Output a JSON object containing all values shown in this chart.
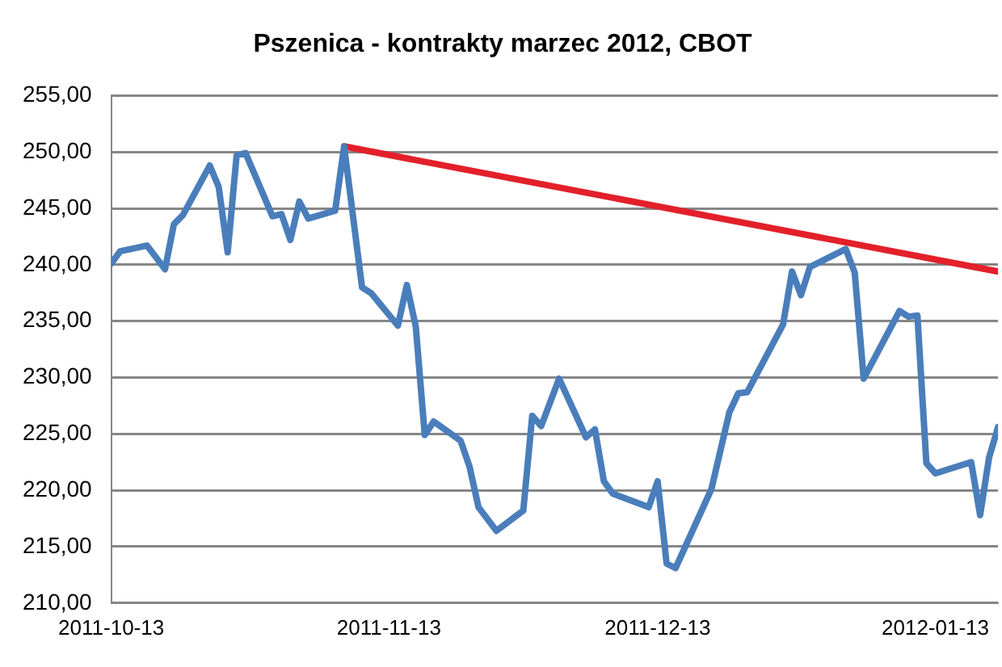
{
  "chart_data": {
    "type": "line",
    "title": "Pszenica - kontrakty marzec 2012, CBOT",
    "xlim": [
      "2011-10-13",
      "2012-01-20"
    ],
    "xticks": [
      "2011-10-13",
      "2011-11-13",
      "2011-12-13",
      "2012-01-13"
    ],
    "ylim": [
      210,
      255
    ],
    "yticks": [
      {
        "value": 210,
        "label": "210,00"
      },
      {
        "value": 215,
        "label": "215,00"
      },
      {
        "value": 220,
        "label": "220,00"
      },
      {
        "value": 225,
        "label": "225,00"
      },
      {
        "value": 230,
        "label": "230,00"
      },
      {
        "value": 235,
        "label": "235,00"
      },
      {
        "value": 240,
        "label": "240,00"
      },
      {
        "value": 245,
        "label": "245,00"
      },
      {
        "value": 250,
        "label": "250,00"
      },
      {
        "value": 255,
        "label": "255,00"
      }
    ],
    "grid": "y",
    "legend": false,
    "marker": "none",
    "line_style": "solid",
    "series": [
      {
        "color": "#4a7ebb",
        "x": [
          "2011-10-13",
          "2011-10-14",
          "2011-10-17",
          "2011-10-19",
          "2011-10-20",
          "2011-10-21",
          "2011-10-24",
          "2011-10-25",
          "2011-10-26",
          "2011-10-27",
          "2011-10-28",
          "2011-10-31",
          "2011-11-01",
          "2011-11-02",
          "2011-11-03",
          "2011-11-04",
          "2011-11-07",
          "2011-11-08",
          "2011-11-10",
          "2011-11-11",
          "2011-11-14",
          "2011-11-15",
          "2011-11-16",
          "2011-11-17",
          "2011-11-18",
          "2011-11-21",
          "2011-11-22",
          "2011-11-23",
          "2011-11-25",
          "2011-11-28",
          "2011-11-29",
          "2011-11-30",
          "2011-12-02",
          "2011-12-05",
          "2011-12-06",
          "2011-12-07",
          "2011-12-08",
          "2011-12-12",
          "2011-12-13",
          "2011-12-14",
          "2011-12-15",
          "2011-12-19",
          "2011-12-21",
          "2011-12-22",
          "2011-12-23",
          "2011-12-27",
          "2011-12-28",
          "2011-12-29",
          "2011-12-30",
          "2012-01-03",
          "2012-01-04",
          "2012-01-05",
          "2012-01-09",
          "2012-01-10",
          "2012-01-11",
          "2012-01-12",
          "2012-01-13",
          "2012-01-17",
          "2012-01-18",
          "2012-01-19",
          "2012-01-20"
        ],
        "values": [
          240.1,
          241.2,
          241.7,
          239.6,
          243.6,
          244.4,
          248.8,
          246.9,
          241.1,
          249.7,
          249.9,
          244.3,
          244.5,
          242.2,
          245.6,
          244.1,
          244.8,
          250.5,
          238.0,
          237.5,
          234.6,
          238.2,
          234.5,
          224.9,
          226.1,
          224.4,
          222.1,
          218.5,
          216.4,
          218.2,
          226.6,
          225.7,
          229.9,
          224.7,
          225.4,
          220.8,
          219.7,
          218.5,
          220.8,
          213.5,
          213.1,
          220.1,
          226.9,
          228.6,
          228.7,
          234.7,
          239.4,
          237.3,
          239.8,
          241.4,
          239.3,
          229.9,
          235.9,
          235.4,
          235.5,
          222.4,
          221.5,
          222.5,
          217.8,
          222.9,
          225.6
        ]
      },
      {
        "type": "line",
        "color": "#e3202a",
        "x": [
          "2011-11-08",
          "2012-01-20"
        ],
        "values": [
          250.5,
          239.4
        ]
      }
    ]
  }
}
